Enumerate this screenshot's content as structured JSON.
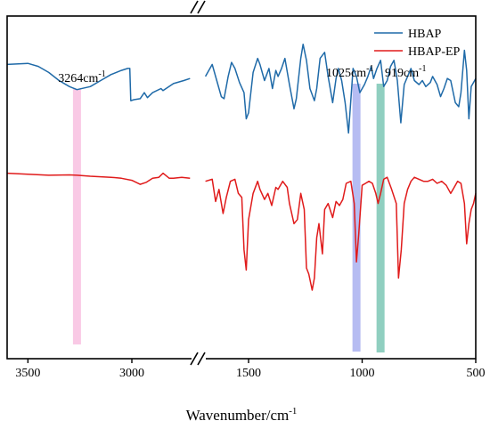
{
  "chart_data": {
    "type": "line",
    "xlabel": "Wavenumber/cm",
    "xlabel_sup": "-1",
    "x_reversed": true,
    "axis_break": true,
    "segments": [
      {
        "xlim": [
          3600,
          2700
        ],
        "ticks": [
          3500,
          3000
        ]
      },
      {
        "xlim": [
          1700,
          500
        ],
        "ticks": [
          1500,
          1000,
          500
        ]
      }
    ],
    "series": [
      {
        "name": "HBAP",
        "color": "#1f6aa8",
        "segments": [
          [
            [
              3600,
              0.74
            ],
            [
              3500,
              0.745
            ],
            [
              3450,
              0.73
            ],
            [
              3400,
              0.7
            ],
            [
              3350,
              0.66
            ],
            [
              3300,
              0.63
            ],
            [
              3264,
              0.615
            ],
            [
              3200,
              0.63
            ],
            [
              3150,
              0.66
            ],
            [
              3100,
              0.69
            ],
            [
              3050,
              0.71
            ],
            [
              3020,
              0.72
            ],
            [
              3010,
              0.72
            ],
            [
              3005,
              0.56
            ],
            [
              2990,
              0.565
            ],
            [
              2960,
              0.57
            ],
            [
              2940,
              0.6
            ],
            [
              2925,
              0.575
            ],
            [
              2900,
              0.6
            ],
            [
              2860,
              0.62
            ],
            [
              2850,
              0.61
            ],
            [
              2800,
              0.645
            ],
            [
              2750,
              0.66
            ],
            [
              2720,
              0.67
            ]
          ],
          [
            [
              1690,
              0.68
            ],
            [
              1660,
              0.74
            ],
            [
              1640,
              0.66
            ],
            [
              1620,
              0.58
            ],
            [
              1608,
              0.57
            ],
            [
              1590,
              0.68
            ],
            [
              1575,
              0.75
            ],
            [
              1560,
              0.72
            ],
            [
              1540,
              0.65
            ],
            [
              1520,
              0.6
            ],
            [
              1510,
              0.47
            ],
            [
              1500,
              0.5
            ],
            [
              1480,
              0.7
            ],
            [
              1460,
              0.77
            ],
            [
              1450,
              0.74
            ],
            [
              1430,
              0.66
            ],
            [
              1410,
              0.72
            ],
            [
              1395,
              0.62
            ],
            [
              1380,
              0.71
            ],
            [
              1370,
              0.68
            ],
            [
              1355,
              0.72
            ],
            [
              1340,
              0.77
            ],
            [
              1320,
              0.64
            ],
            [
              1300,
              0.52
            ],
            [
              1290,
              0.57
            ],
            [
              1270,
              0.77
            ],
            [
              1260,
              0.84
            ],
            [
              1245,
              0.76
            ],
            [
              1230,
              0.62
            ],
            [
              1210,
              0.56
            ],
            [
              1200,
              0.62
            ],
            [
              1185,
              0.77
            ],
            [
              1165,
              0.8
            ],
            [
              1150,
              0.68
            ],
            [
              1130,
              0.55
            ],
            [
              1115,
              0.67
            ],
            [
              1105,
              0.72
            ],
            [
              1090,
              0.66
            ],
            [
              1075,
              0.55
            ],
            [
              1060,
              0.4
            ],
            [
              1040,
              0.72
            ],
            [
              1025,
              0.68
            ],
            [
              1010,
              0.6
            ],
            [
              990,
              0.64
            ],
            [
              975,
              0.68
            ],
            [
              960,
              0.73
            ],
            [
              950,
              0.67
            ],
            [
              935,
              0.72
            ],
            [
              919,
              0.76
            ],
            [
              905,
              0.63
            ],
            [
              890,
              0.66
            ],
            [
              875,
              0.73
            ],
            [
              860,
              0.76
            ],
            [
              845,
              0.66
            ],
            [
              830,
              0.45
            ],
            [
              815,
              0.64
            ],
            [
              800,
              0.68
            ],
            [
              785,
              0.72
            ],
            [
              770,
              0.66
            ],
            [
              750,
              0.64
            ],
            [
              735,
              0.66
            ],
            [
              720,
              0.63
            ],
            [
              700,
              0.65
            ],
            [
              690,
              0.68
            ],
            [
              670,
              0.64
            ],
            [
              655,
              0.58
            ],
            [
              640,
              0.62
            ],
            [
              625,
              0.67
            ],
            [
              610,
              0.66
            ],
            [
              590,
              0.55
            ],
            [
              575,
              0.53
            ],
            [
              565,
              0.6
            ],
            [
              550,
              0.81
            ],
            [
              540,
              0.71
            ],
            [
              530,
              0.47
            ],
            [
              520,
              0.63
            ],
            [
              510,
              0.65
            ],
            [
              500,
              0.67
            ]
          ]
        ]
      },
      {
        "name": "HBAP-EP",
        "color": "#e01b1b",
        "segments": [
          [
            [
              3600,
              0.2
            ],
            [
              3500,
              0.195
            ],
            [
              3400,
              0.19
            ],
            [
              3300,
              0.192
            ],
            [
              3264,
              0.19
            ],
            [
              3200,
              0.185
            ],
            [
              3100,
              0.18
            ],
            [
              3050,
              0.175
            ],
            [
              3000,
              0.165
            ],
            [
              2960,
              0.145
            ],
            [
              2930,
              0.155
            ],
            [
              2900,
              0.175
            ],
            [
              2870,
              0.18
            ],
            [
              2850,
              0.2
            ],
            [
              2820,
              0.175
            ],
            [
              2800,
              0.175
            ],
            [
              2760,
              0.18
            ],
            [
              2720,
              0.175
            ]
          ],
          [
            [
              1690,
              0.16
            ],
            [
              1660,
              0.17
            ],
            [
              1645,
              0.06
            ],
            [
              1630,
              0.12
            ],
            [
              1612,
              0.0
            ],
            [
              1598,
              0.08
            ],
            [
              1580,
              0.16
            ],
            [
              1560,
              0.17
            ],
            [
              1545,
              0.1
            ],
            [
              1530,
              0.08
            ],
            [
              1520,
              -0.18
            ],
            [
              1510,
              -0.28
            ],
            [
              1500,
              -0.03
            ],
            [
              1480,
              0.1
            ],
            [
              1460,
              0.16
            ],
            [
              1450,
              0.12
            ],
            [
              1430,
              0.07
            ],
            [
              1415,
              0.1
            ],
            [
              1398,
              0.04
            ],
            [
              1380,
              0.13
            ],
            [
              1370,
              0.12
            ],
            [
              1350,
              0.16
            ],
            [
              1330,
              0.13
            ],
            [
              1320,
              0.05
            ],
            [
              1300,
              -0.05
            ],
            [
              1285,
              -0.03
            ],
            [
              1270,
              0.1
            ],
            [
              1255,
              0.02
            ],
            [
              1245,
              -0.27
            ],
            [
              1235,
              -0.3
            ],
            [
              1220,
              -0.38
            ],
            [
              1210,
              -0.32
            ],
            [
              1200,
              -0.12
            ],
            [
              1190,
              -0.05
            ],
            [
              1175,
              -0.2
            ],
            [
              1165,
              0.02
            ],
            [
              1150,
              0.05
            ],
            [
              1130,
              -0.02
            ],
            [
              1115,
              0.06
            ],
            [
              1100,
              0.04
            ],
            [
              1085,
              0.07
            ],
            [
              1070,
              0.15
            ],
            [
              1050,
              0.16
            ],
            [
              1035,
              0.05
            ],
            [
              1025,
              -0.24
            ],
            [
              1015,
              -0.1
            ],
            [
              1000,
              0.14
            ],
            [
              985,
              0.15
            ],
            [
              970,
              0.16
            ],
            [
              955,
              0.15
            ],
            [
              940,
              0.1
            ],
            [
              930,
              0.05
            ],
            [
              919,
              0.1
            ],
            [
              905,
              0.17
            ],
            [
              890,
              0.18
            ],
            [
              870,
              0.12
            ],
            [
              850,
              0.05
            ],
            [
              840,
              -0.32
            ],
            [
              828,
              -0.18
            ],
            [
              815,
              0.05
            ],
            [
              800,
              0.12
            ],
            [
              785,
              0.16
            ],
            [
              770,
              0.18
            ],
            [
              750,
              0.17
            ],
            [
              730,
              0.16
            ],
            [
              710,
              0.16
            ],
            [
              690,
              0.17
            ],
            [
              670,
              0.15
            ],
            [
              650,
              0.16
            ],
            [
              630,
              0.14
            ],
            [
              610,
              0.1
            ],
            [
              595,
              0.13
            ],
            [
              580,
              0.16
            ],
            [
              565,
              0.15
            ],
            [
              550,
              0.05
            ],
            [
              540,
              -0.15
            ],
            [
              530,
              -0.05
            ],
            [
              520,
              0.02
            ],
            [
              510,
              0.05
            ],
            [
              500,
              0.1
            ]
          ]
        ]
      }
    ],
    "highlights": [
      {
        "x": 3264,
        "label": "3264cm",
        "sup": "-1",
        "color": "#f8bfe0"
      },
      {
        "x": 1025,
        "label": "1025cm",
        "sup": "-1",
        "color": "#a9b0f0"
      },
      {
        "x": 919,
        "label": "919cm",
        "sup": "-1",
        "color": "#7cc7b5"
      }
    ],
    "legend_position": "top-right",
    "y_ticks_shown": false
  }
}
